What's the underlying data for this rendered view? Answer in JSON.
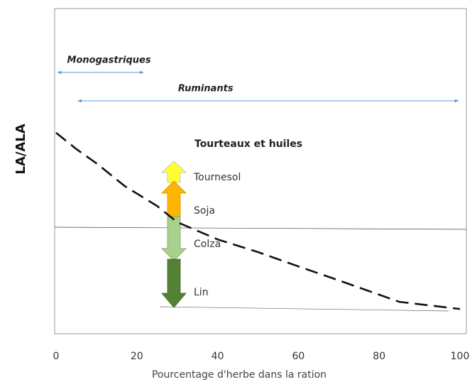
{
  "chart_data": {
    "type": "line",
    "title": "Tourteaux et huiles",
    "xlabel": "Pourcentage d'herbe dans la ration",
    "ylabel": "LA/ALA",
    "xlim": [
      0,
      100
    ],
    "xticks": [
      0,
      20,
      40,
      60,
      80,
      100
    ],
    "ylim": [
      0,
      100
    ],
    "series": [
      {
        "color": "#111111",
        "dash": true,
        "x": [
          0,
          5,
          10,
          17,
          25,
          30,
          40,
          50,
          60,
          70,
          85,
          100
        ],
        "values": [
          61.8,
          56.8,
          52.4,
          45.4,
          39.3,
          34.3,
          29.0,
          25.1,
          20.7,
          16.4,
          9.8,
          7.6
        ]
      }
    ],
    "annotations": [
      {
        "text": "Monogastriques",
        "x": [
          0,
          22
        ]
      },
      {
        "text": "Ruminants",
        "x": [
          5,
          100
        ]
      }
    ],
    "labels": [
      "Tournesol",
      "Soja",
      "Colza",
      "Lin"
    ]
  }
}
